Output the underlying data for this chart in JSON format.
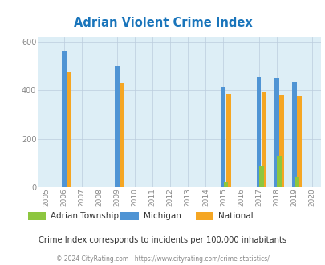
{
  "title": "Adrian Violent Crime Index",
  "years": [
    2005,
    2006,
    2007,
    2008,
    2009,
    2010,
    2011,
    2012,
    2013,
    2014,
    2015,
    2016,
    2017,
    2018,
    2019,
    2020
  ],
  "bar_width": 0.28,
  "series": {
    "Adrian Township": {
      "color": "#8dc63f",
      "values": {
        "2015": 20,
        "2017": 85,
        "2018": 130,
        "2019": 40
      }
    },
    "Michigan": {
      "color": "#4f94d4",
      "values": {
        "2006": 565,
        "2009": 500,
        "2015": 415,
        "2017": 455,
        "2018": 450,
        "2019": 435
      }
    },
    "National": {
      "color": "#f5a623",
      "values": {
        "2006": 475,
        "2009": 430,
        "2015": 385,
        "2017": 395,
        "2018": 380,
        "2019": 375
      }
    }
  },
  "ylim": [
    0,
    620
  ],
  "yticks": [
    0,
    200,
    400,
    600
  ],
  "plot_bg_color": "#ddeef6",
  "fig_bg_color": "#ffffff",
  "title_color": "#1a75bb",
  "subtitle": "Crime Index corresponds to incidents per 100,000 inhabitants",
  "footer": "© 2024 CityRating.com - https://www.cityrating.com/crime-statistics/",
  "subtitle_color": "#333333",
  "footer_color": "#888888",
  "grid_color": "#bbccdd",
  "tick_color": "#888888"
}
